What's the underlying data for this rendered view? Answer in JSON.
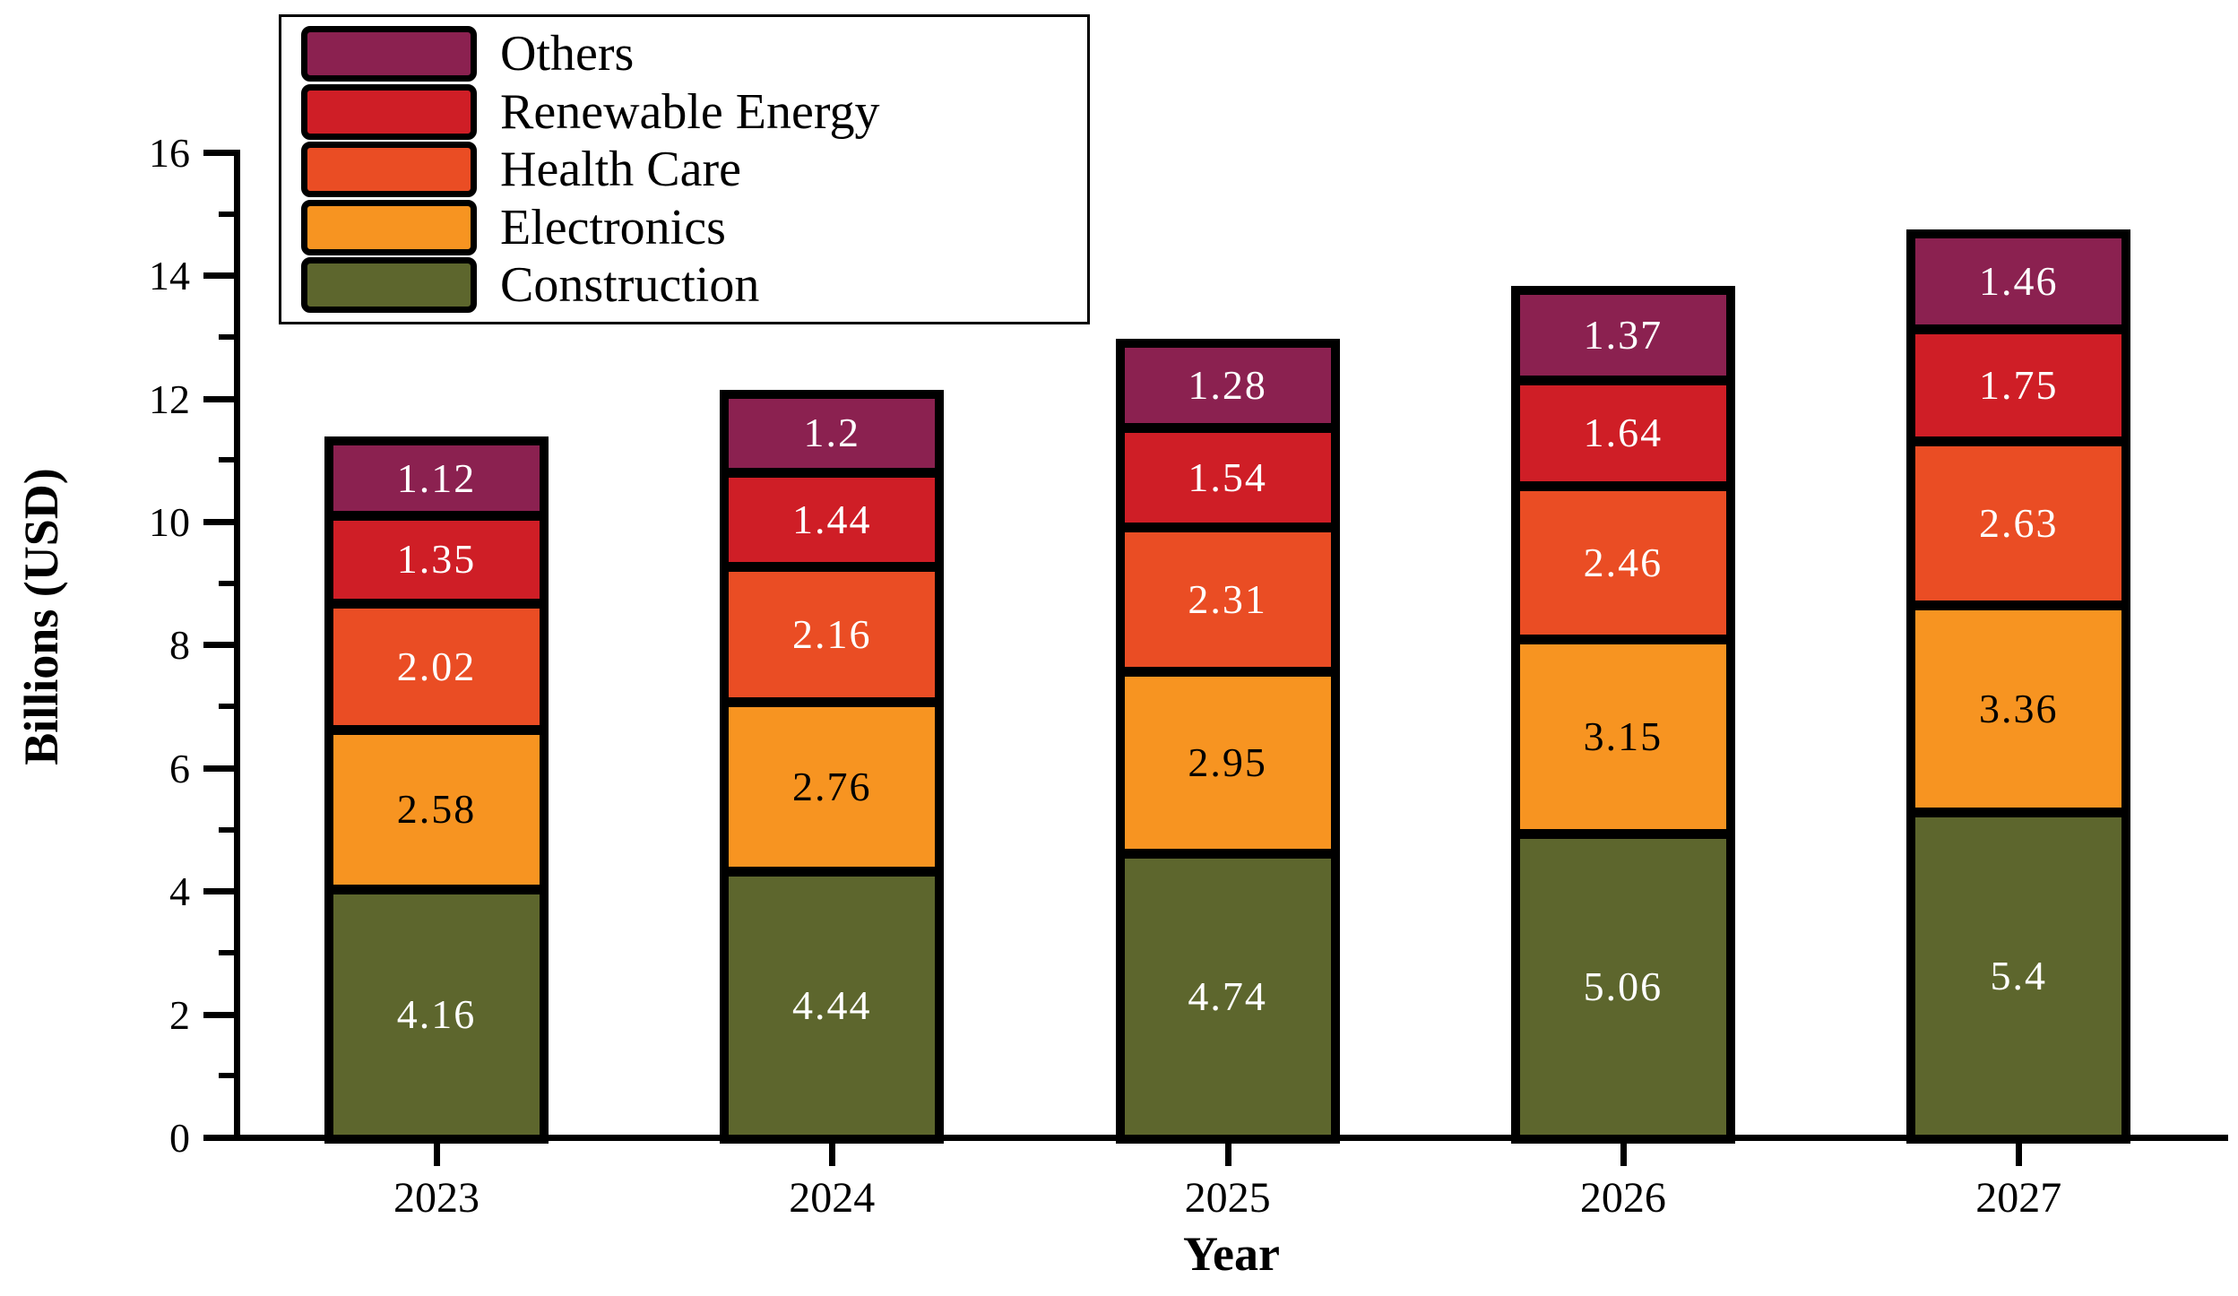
{
  "figure": {
    "background": "#ffffff",
    "outline_color": "#000000"
  },
  "chart_data": {
    "type": "stacked-bar",
    "title": "",
    "xlabel": "Year",
    "ylabel": "Billions (USD)",
    "categories": [
      "2023",
      "2024",
      "2025",
      "2026",
      "2027"
    ],
    "series": [
      {
        "name": "Construction",
        "color": "#5D662D",
        "label_color": "#FFFFFF",
        "values": [
          4.16,
          4.44,
          4.74,
          5.06,
          5.4
        ]
      },
      {
        "name": "Electronics",
        "color": "#F79421",
        "label_color": "#000000",
        "values": [
          2.58,
          2.76,
          2.95,
          3.15,
          3.36
        ]
      },
      {
        "name": "Health Care",
        "color": "#EA4D24",
        "label_color": "#FFFFFF",
        "values": [
          2.02,
          2.16,
          2.31,
          2.46,
          2.63
        ]
      },
      {
        "name": "Renewable Energy",
        "color": "#CF1E26",
        "label_color": "#FFFFFF",
        "values": [
          1.35,
          1.44,
          1.54,
          1.64,
          1.75
        ]
      },
      {
        "name": "Others",
        "color": "#8B2150",
        "label_color": "#FFFFFF",
        "values": [
          1.12,
          1.2,
          1.28,
          1.37,
          1.46
        ]
      }
    ],
    "y_axis": {
      "min": 0,
      "max": 16,
      "major_step": 2,
      "minor_step": 1,
      "major_tick_labels": [
        "0",
        "2",
        "4",
        "6",
        "8",
        "10",
        "12",
        "14",
        "16"
      ]
    },
    "legend": {
      "position": "top-left",
      "order_top_to_bottom": [
        "Others",
        "Renewable Energy",
        "Health Care",
        "Electronics",
        "Construction"
      ]
    },
    "grid": false,
    "bar_outline_color": "#000000"
  }
}
